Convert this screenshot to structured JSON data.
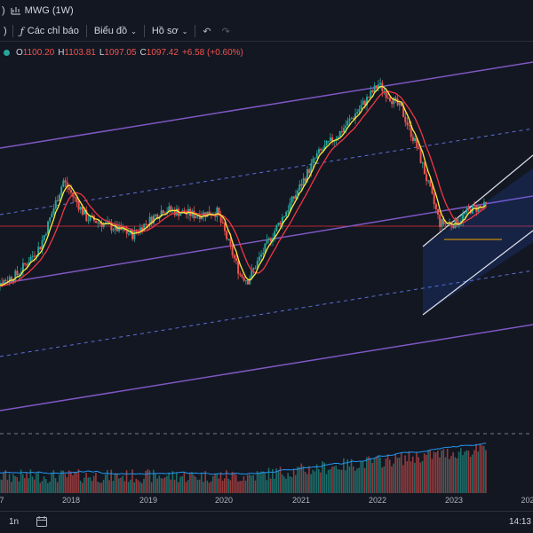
{
  "header": {
    "paren": ")",
    "symbol_label": "MWG (1W)"
  },
  "toolbar": {
    "indicators_label": "Các chỉ báo",
    "chart_label": "Biểu đồ",
    "profile_label": "Hồ sơ"
  },
  "ohlc": {
    "o_label": "O",
    "o": "1100.20",
    "h_label": "H",
    "h": "1103.81",
    "l_label": "L",
    "l": "1097.05",
    "c_label": "C",
    "c": "1097.42",
    "change": "+6.58 (+0.60%)"
  },
  "bottom": {
    "interval": "1n",
    "time": "14:13"
  },
  "colors": {
    "background": "#131722",
    "up": "#26a69a",
    "down": "#ef5350",
    "channel": "#7e57c2",
    "ma_fast": "#ffeb3b",
    "ma_slow": "#f23645",
    "volume_ma": "#2196f3"
  },
  "chart_data": {
    "type": "candlestick",
    "symbol": "MWG",
    "interval": "1W",
    "x_ticks": [
      "7",
      "2018",
      "2019",
      "2020",
      "2021",
      "2022",
      "2023",
      "202"
    ],
    "price_points": [
      {
        "t": 2016.9,
        "p": 0.28
      },
      {
        "t": 2017.3,
        "p": 0.33
      },
      {
        "t": 2017.6,
        "p": 0.43
      },
      {
        "t": 2017.9,
        "p": 0.66
      },
      {
        "t": 2018.2,
        "p": 0.53
      },
      {
        "t": 2018.5,
        "p": 0.5
      },
      {
        "t": 2018.8,
        "p": 0.47
      },
      {
        "t": 2019.2,
        "p": 0.56
      },
      {
        "t": 2019.6,
        "p": 0.54
      },
      {
        "t": 2019.9,
        "p": 0.55
      },
      {
        "t": 2020.2,
        "p": 0.33
      },
      {
        "t": 2020.3,
        "p": 0.31
      },
      {
        "t": 2020.6,
        "p": 0.46
      },
      {
        "t": 2020.9,
        "p": 0.6
      },
      {
        "t": 2021.2,
        "p": 0.75
      },
      {
        "t": 2021.5,
        "p": 0.83
      },
      {
        "t": 2021.8,
        "p": 0.93
      },
      {
        "t": 2022.0,
        "p": 1.0
      },
      {
        "t": 2022.3,
        "p": 0.91
      },
      {
        "t": 2022.5,
        "p": 0.78
      },
      {
        "t": 2022.8,
        "p": 0.51
      },
      {
        "t": 2023.0,
        "p": 0.51
      },
      {
        "t": 2023.2,
        "p": 0.56
      },
      {
        "t": 2023.4,
        "p": 0.57
      }
    ],
    "ma_fast": "yellow",
    "ma_slow": "red",
    "volume": true,
    "volume_ma": true,
    "drawings": [
      "parallel channel (purple)",
      "ascending channel (white)"
    ]
  }
}
